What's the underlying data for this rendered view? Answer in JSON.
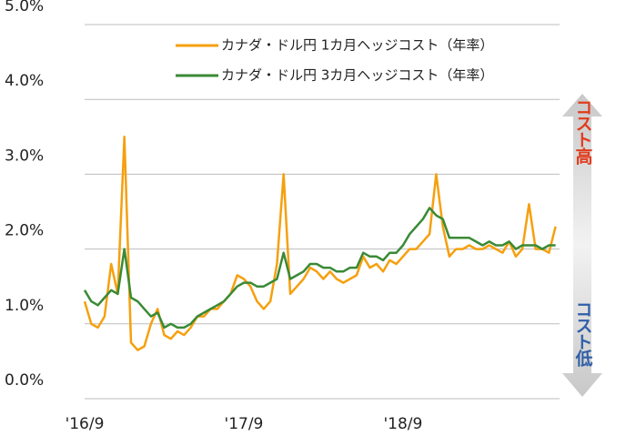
{
  "chart_data": {
    "type": "line",
    "categories": [
      "'16/9",
      null,
      null,
      null,
      null,
      null,
      null,
      null,
      null,
      null,
      null,
      null,
      null,
      null,
      null,
      null,
      null,
      null,
      null,
      null,
      null,
      null,
      null,
      null,
      "'17/9",
      null,
      null,
      null,
      null,
      null,
      null,
      null,
      null,
      null,
      null,
      null,
      null,
      null,
      null,
      null,
      null,
      null,
      null,
      null,
      null,
      null,
      null,
      null,
      "'18/9",
      null,
      null,
      null,
      null,
      null,
      null,
      null,
      null,
      null,
      null,
      null,
      null,
      null,
      null,
      null,
      null,
      null,
      null,
      null,
      null,
      null,
      null,
      null
    ],
    "series": [
      {
        "name": "カナダ・ドル円 1カ月ヘッジコスト（年率）",
        "color": "#f5a00f",
        "values": [
          1.3,
          1.0,
          0.95,
          1.1,
          1.8,
          1.4,
          3.5,
          0.75,
          0.65,
          0.7,
          1.0,
          1.2,
          0.85,
          0.8,
          0.9,
          0.85,
          0.95,
          1.1,
          1.1,
          1.2,
          1.2,
          1.3,
          1.4,
          1.65,
          1.6,
          1.5,
          1.3,
          1.2,
          1.3,
          1.8,
          3.0,
          1.4,
          1.5,
          1.6,
          1.75,
          1.7,
          1.6,
          1.7,
          1.6,
          1.55,
          1.6,
          1.65,
          1.9,
          1.75,
          1.8,
          1.7,
          1.85,
          1.8,
          1.9,
          2.0,
          2.0,
          2.1,
          2.2,
          3.0,
          2.3,
          1.9,
          2.0,
          2.0,
          2.05,
          2.0,
          2.0,
          2.05,
          2.0,
          1.95,
          2.1,
          1.9,
          2.0,
          2.6,
          2.0,
          2.0,
          1.95,
          2.3
        ]
      },
      {
        "name": "カナダ・ドル円 3カ月ヘッジコスト（年率）",
        "color": "#3a8a35",
        "values": [
          1.45,
          1.3,
          1.25,
          1.35,
          1.45,
          1.4,
          2.0,
          1.35,
          1.3,
          1.2,
          1.1,
          1.15,
          0.95,
          1.0,
          0.95,
          0.95,
          1.0,
          1.1,
          1.15,
          1.2,
          1.25,
          1.3,
          1.4,
          1.5,
          1.55,
          1.55,
          1.5,
          1.5,
          1.55,
          1.6,
          1.95,
          1.6,
          1.65,
          1.7,
          1.8,
          1.8,
          1.75,
          1.75,
          1.7,
          1.7,
          1.75,
          1.75,
          1.95,
          1.9,
          1.9,
          1.85,
          1.95,
          1.95,
          2.05,
          2.2,
          2.3,
          2.4,
          2.55,
          2.45,
          2.4,
          2.15,
          2.15,
          2.15,
          2.15,
          2.1,
          2.05,
          2.1,
          2.05,
          2.05,
          2.1,
          2.0,
          2.05,
          2.05,
          2.05,
          2.0,
          2.05,
          2.05
        ]
      }
    ],
    "ylim": [
      0,
      5
    ],
    "yticks": [
      {
        "value": 0,
        "label": "0.0%"
      },
      {
        "value": 1,
        "label": "1.0%"
      },
      {
        "value": 2,
        "label": "2.0%"
      },
      {
        "value": 3,
        "label": "3.0%"
      },
      {
        "value": 4,
        "label": "4.0%"
      },
      {
        "value": 5,
        "label": "5.0%"
      }
    ],
    "grid": true,
    "legend": "upper right",
    "annotations": [
      {
        "text": "コスト高",
        "color": "#e03c1e"
      },
      {
        "text": "コスト低",
        "color": "#2f5fa8"
      }
    ]
  }
}
